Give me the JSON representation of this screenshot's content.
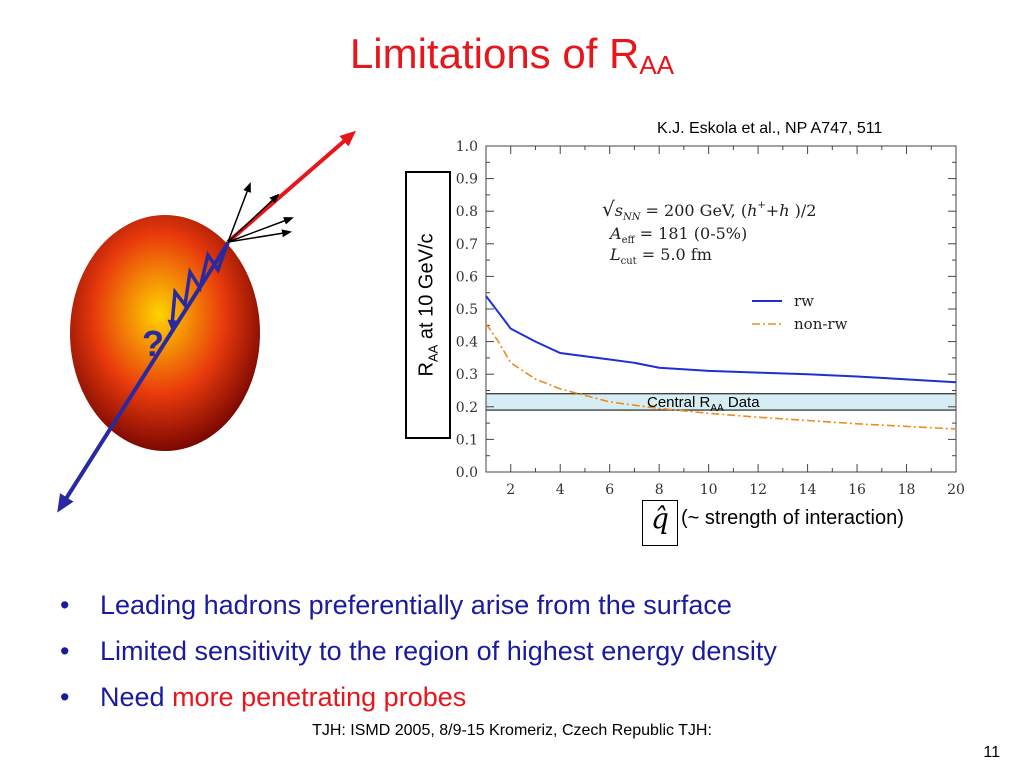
{
  "slide": {
    "title_main": "Limitations of R",
    "title_sub": "AA",
    "citation": "K.J. Eskola et al., NP A747, 511",
    "y_label_main": "R",
    "y_label_sub": "AA",
    "y_label_rest": "at  10 GeV/c",
    "qhat_symbol": "q̂",
    "qhat_caption": "(~ strength of interaction)",
    "diagram_question": "?",
    "bullets": [
      {
        "text": "Leading hadrons preferentially arise from the surface"
      },
      {
        "text": "Limited sensitivity to the region of highest energy density"
      },
      {
        "text": "Need ",
        "highlight": "more penetrating probes"
      }
    ],
    "footer": "TJH: ISMD 2005, 8/9-15 Kromeriz, Czech Republic TJH:",
    "page_number": "11"
  },
  "chart_data": {
    "type": "line",
    "x_ticks": [
      "2",
      "4",
      "6",
      "8",
      "10",
      "12",
      "14",
      "16",
      "18",
      "20"
    ],
    "y_ticks": [
      "0.0",
      "0.1",
      "0.2",
      "0.3",
      "0.4",
      "0.5",
      "0.6",
      "0.7",
      "0.8",
      "0.9",
      "1.0"
    ],
    "xlim": [
      1,
      20
    ],
    "ylim": [
      0,
      1
    ],
    "annotation": {
      "line1_a": "s",
      "line1_b": "NN",
      "line1_c": " = 200 GeV, (",
      "line1_d": "h",
      "line1_e": "+",
      "line1_f": "+",
      "line1_g": "h",
      "line1_h": "  )/2",
      "line2_a": "A",
      "line2_b": "eff",
      "line2_c": " = 181 (0-5%)",
      "line3_a": "L",
      "line3_b": "cut",
      "line3_c": " = 5.0 fm"
    },
    "band": {
      "label_a": "Central R",
      "label_sub": "AA",
      "label_b": " Data",
      "y_min": 0.19,
      "y_max": 0.24,
      "color": "#d6eef3"
    },
    "series": [
      {
        "name": "rw",
        "color": "#1f2fd6",
        "dash": "",
        "x": [
          1,
          1.5,
          2,
          3,
          4,
          5,
          6,
          7,
          8,
          10,
          12,
          14,
          16,
          18,
          20
        ],
        "y": [
          0.54,
          0.49,
          0.44,
          0.4,
          0.365,
          0.355,
          0.345,
          0.335,
          0.32,
          0.31,
          0.305,
          0.3,
          0.293,
          0.284,
          0.275
        ]
      },
      {
        "name": "non-rw",
        "color": "#f08a1e",
        "dash": "8,3,2,3",
        "x": [
          1,
          1.5,
          2,
          3,
          4,
          5,
          6,
          7,
          8,
          10,
          12,
          14,
          16,
          18,
          20
        ],
        "y": [
          0.455,
          0.4,
          0.335,
          0.285,
          0.255,
          0.235,
          0.215,
          0.205,
          0.195,
          0.18,
          0.168,
          0.158,
          0.148,
          0.14,
          0.132
        ]
      }
    ],
    "colors": {
      "nucleus_center": "#ffd400",
      "nucleus_mid": "#e83a0c",
      "nucleus_edge": "#6a0000",
      "track": "#2a2aa0",
      "jet": "#e8161b",
      "fragments": "#000000"
    }
  }
}
